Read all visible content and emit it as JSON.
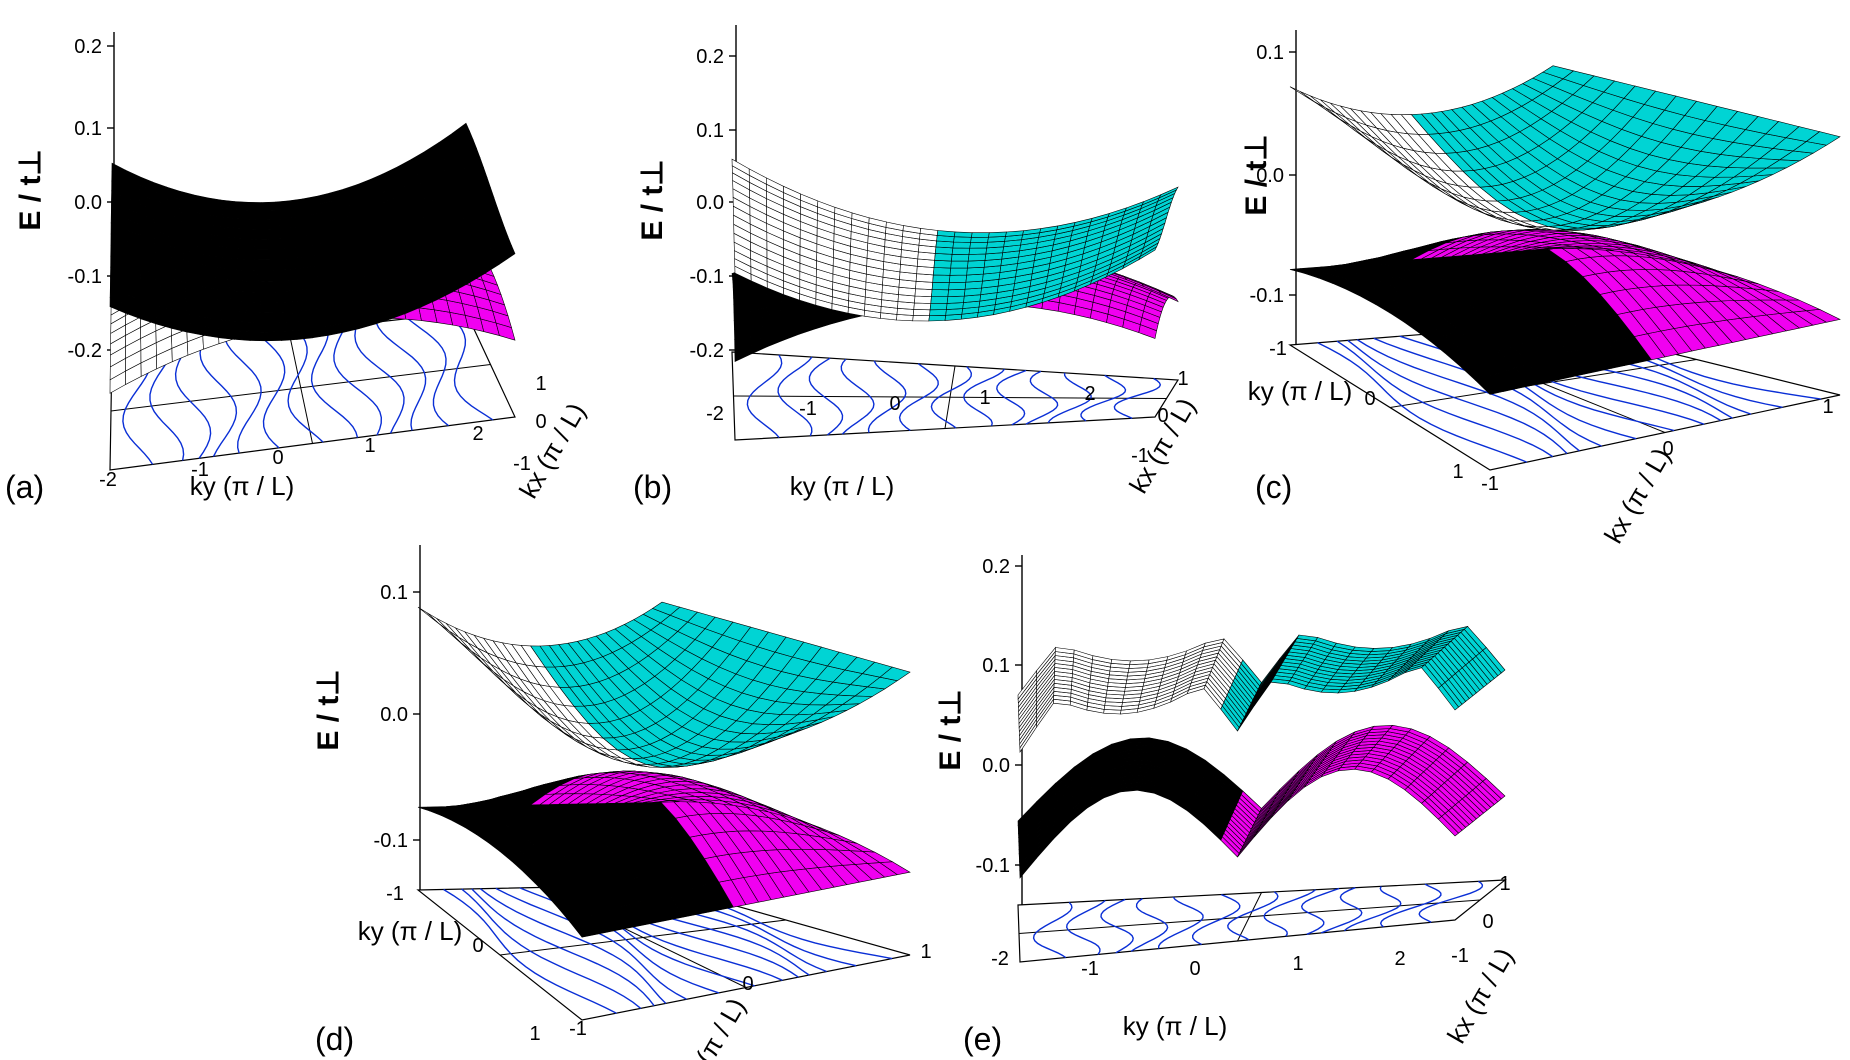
{
  "colors": {
    "upper_back": "#ffffff",
    "upper_front": "#00d4d4",
    "lower_front": "#f000f0",
    "lower_back": "#f2ea8c",
    "dark": "#000000",
    "contour": "#0a2fd6",
    "wire": "#000000"
  },
  "chart_data": [
    {
      "id": "a",
      "panel_label": "(a)",
      "type": "surface",
      "title": "",
      "zlabel": "E / t⊥",
      "ztick_labels": [
        "0.2",
        "0.1",
        "0.0",
        "-0.1",
        "-0.2"
      ],
      "axis1": {
        "label": "ky (π / L)",
        "ticks": [
          "-2",
          "-1",
          "0",
          "1",
          "2"
        ],
        "range": [
          -2,
          2
        ]
      },
      "axis2": {
        "label": "kx (π / L)",
        "ticks": [
          "1",
          "0",
          "-1"
        ],
        "range": [
          -1,
          1
        ]
      },
      "zlim": [
        -0.25,
        0.25
      ],
      "surfaces": [
        "upper branch E+(kx, ky) > 0",
        "lower branch E-(kx, ky) < 0"
      ],
      "contour_plane": "projected constant-energy contours at base"
    },
    {
      "id": "b",
      "panel_label": "(b)",
      "type": "surface",
      "title": "",
      "zlabel": "E / t⊥",
      "ztick_labels": [
        "0.2",
        "0.1",
        "0.0",
        "-0.1",
        "-0.2"
      ],
      "axis1": {
        "label": "ky (π / L)",
        "ticks": [
          "-2",
          "-1",
          "0",
          "1",
          "2"
        ],
        "range": [
          -2,
          2
        ]
      },
      "axis2": {
        "label": "kx (π / L)",
        "ticks": [
          "1",
          "0",
          "-1"
        ],
        "range": [
          -1,
          1
        ]
      },
      "zlim": [
        -0.25,
        0.25
      ],
      "surfaces": [
        "upper branch",
        "lower branch"
      ],
      "contour_plane": "projected constant-energy contours at base"
    },
    {
      "id": "c",
      "panel_label": "(c)",
      "type": "surface",
      "title": "",
      "zlabel": "E / t⊥",
      "ztick_labels": [
        "0.1",
        "0.0",
        "-0.1"
      ],
      "axis1": {
        "label": "ky (π / L)",
        "ticks": [
          "-1",
          "0",
          "1"
        ],
        "range": [
          -1,
          1
        ]
      },
      "axis2": {
        "label": "kx (π / L)",
        "ticks": [
          "-1",
          "0",
          "1"
        ],
        "range": [
          -1,
          1
        ]
      },
      "zlim": [
        -0.15,
        0.15
      ],
      "surfaces": [
        "upper branch",
        "lower branch"
      ],
      "contour_plane": "projected constant-energy contours at base"
    },
    {
      "id": "d",
      "panel_label": "(d)",
      "type": "surface",
      "title": "",
      "zlabel": "E / t⊥",
      "ztick_labels": [
        "0.1",
        "0.0",
        "-0.1"
      ],
      "axis1": {
        "label": "ky (π / L)",
        "ticks": [
          "-1",
          "0",
          "1"
        ],
        "range": [
          -1,
          1
        ]
      },
      "axis2": {
        "label": "kx (π / L)",
        "ticks": [
          "-1",
          "0",
          "1"
        ],
        "range": [
          -1,
          1
        ]
      },
      "zlim": [
        -0.15,
        0.15
      ],
      "surfaces": [
        "upper branch",
        "lower branch"
      ],
      "contour_plane": "projected constant-energy contours at base"
    },
    {
      "id": "e",
      "panel_label": "(e)",
      "type": "surface",
      "title": "",
      "zlabel": "E / t⊥",
      "ztick_labels": [
        "0.2",
        "0.1",
        "0.0",
        "-0.1"
      ],
      "axis1": {
        "label": "ky (π / L)",
        "ticks": [
          "-2",
          "-1",
          "0",
          "1",
          "2"
        ],
        "range": [
          -2,
          2
        ]
      },
      "axis2": {
        "label": "kx (π / L)",
        "ticks": [
          "1",
          "0",
          "-1"
        ],
        "range": [
          -1,
          1
        ]
      },
      "zlim": [
        -0.15,
        0.2
      ],
      "surfaces": [
        "upper branch",
        "lower branch"
      ],
      "contour_plane": "projected constant-energy contours at base"
    }
  ]
}
